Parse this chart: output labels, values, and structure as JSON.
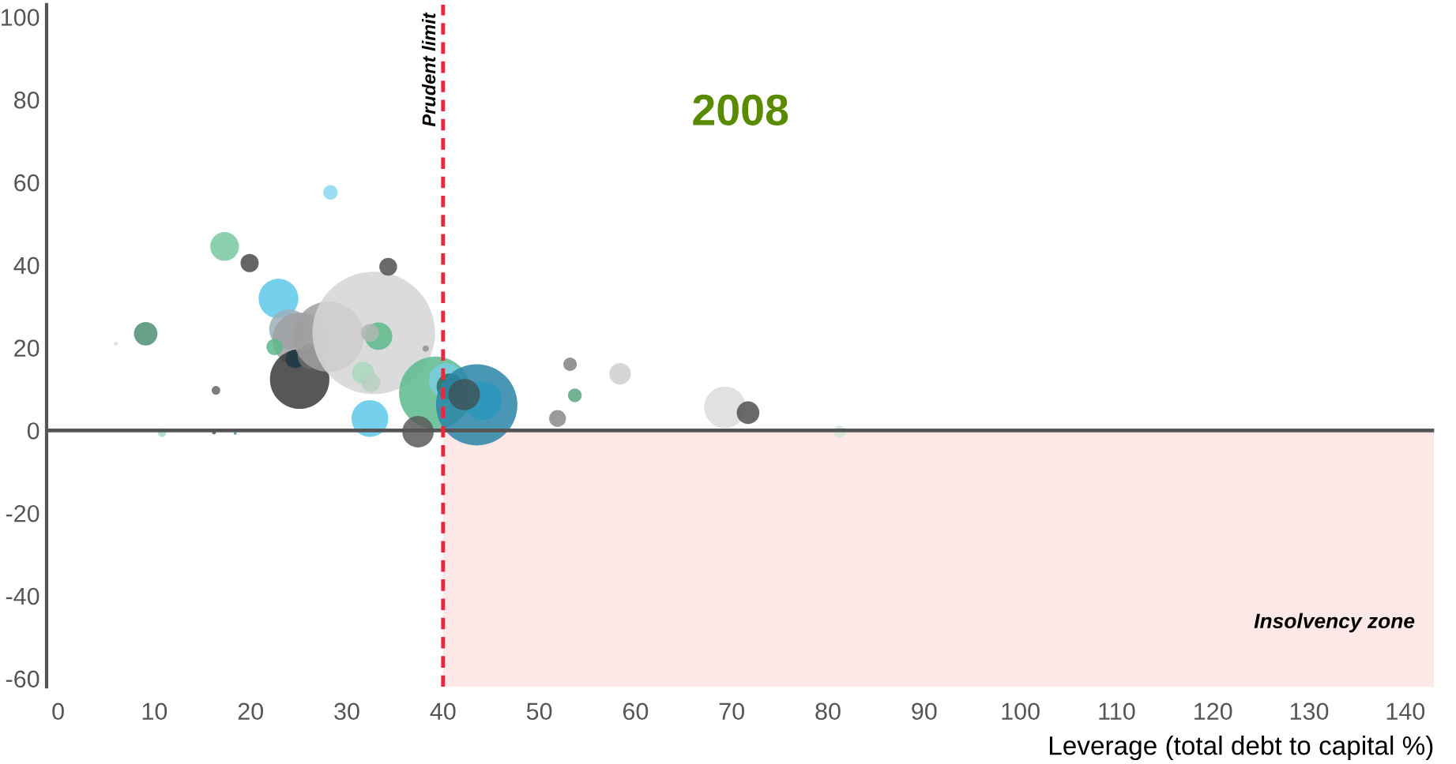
{
  "chart_data": {
    "type": "bubble",
    "title": "2008",
    "xlabel": "Leverage (total debt to capital %)",
    "x": [
      6,
      9.1,
      10.8,
      16.2,
      18.4,
      16.4,
      17.3,
      19.9,
      28.3,
      22.9,
      24,
      25.1,
      22.5,
      25.1,
      24.6,
      26.2,
      28.1,
      32.8,
      34.3,
      33.3,
      32.4,
      31.7,
      32.5,
      32.4,
      38.2,
      39.2,
      37.4,
      40.3,
      40.7,
      43.5,
      44.1,
      42.2,
      53.2,
      53.7,
      51.9,
      58.4,
      69.3,
      71.7,
      81.2
    ],
    "values": [
      21,
      23.4,
      -0.5,
      -0.5,
      -0.7,
      9.7,
      44.5,
      40.5,
      57.6,
      31.9,
      24.5,
      22,
      20.2,
      12.4,
      17.3,
      17.9,
      22.7,
      23.6,
      39.6,
      22.8,
      23.6,
      13.9,
      11.6,
      2.9,
      19.8,
      9.1,
      -0.3,
      12.1,
      10.6,
      6.2,
      7.2,
      8.7,
      16,
      8.5,
      2.9,
      13.7,
      5.6,
      4.3,
      -0.3
    ],
    "sizes": [
      0.001,
      0.037,
      0.005,
      0.001,
      0.0005,
      0.005,
      0.055,
      0.022,
      0.014,
      0.105,
      0.105,
      0.195,
      0.018,
      0.235,
      0.023,
      0.042,
      0.33,
      1,
      0.021,
      0.05,
      0.021,
      0.033,
      0.024,
      0.09,
      0.0027,
      0.35,
      0.066,
      0.078,
      0.046,
      0.44,
      0.1,
      0.066,
      0.012,
      0.0125,
      0.019,
      0.031,
      0.115,
      0.034,
      0.0097
    ],
    "colors": [
      "#d8d8d8",
      "#4f8f74",
      "#a8dcc0",
      "#555555",
      "#2a8ab0",
      "#666666",
      "#78c8a0",
      "#4a4a4a",
      "#8ad8f0",
      "#5cc8ea",
      "#9ab0b8",
      "#a0a0a2",
      "#5cb88a",
      "#3a3a3a",
      "#1f3a48",
      "#6b6b6b",
      "#a09e9f",
      "#d6d5d6",
      "#505050",
      "#5cb88a",
      "#b0b8b0",
      "#a8d8c0",
      "#b8cfc3",
      "#5cc8ea",
      "#909090",
      "#5cbb8e",
      "#5a5a5a",
      "#78cde0",
      "#2f6b55",
      "#2a85a8",
      "#2a96bc",
      "#3d5558",
      "#828284",
      "#5aa582",
      "#8a8a8a",
      "#cfcfd0",
      "#dcdcdc",
      "#505050",
      "#d5e5da"
    ],
    "xlim": [
      -1.2,
      143
    ],
    "ylim": [
      -62,
      103
    ],
    "xticks": [
      0,
      10,
      20,
      30,
      40,
      50,
      60,
      70,
      80,
      90,
      100,
      110,
      120,
      130,
      140
    ],
    "yticks": [
      -60,
      -40,
      -20,
      0,
      20,
      40,
      60,
      80,
      100
    ],
    "ref_lines": [
      {
        "axis": "y",
        "value": 0,
        "label": null,
        "color": "#555555",
        "line_style": "solid"
      },
      {
        "axis": "x",
        "value": 40,
        "label": "Prudent limit",
        "color": "#e8283c",
        "line_style": "dashed"
      }
    ],
    "bands": [
      {
        "axis": "x",
        "from": 40,
        "to": 143,
        "label": "Insolvency zone",
        "color": "#fde8e8"
      }
    ],
    "grid": false,
    "legend": false
  }
}
